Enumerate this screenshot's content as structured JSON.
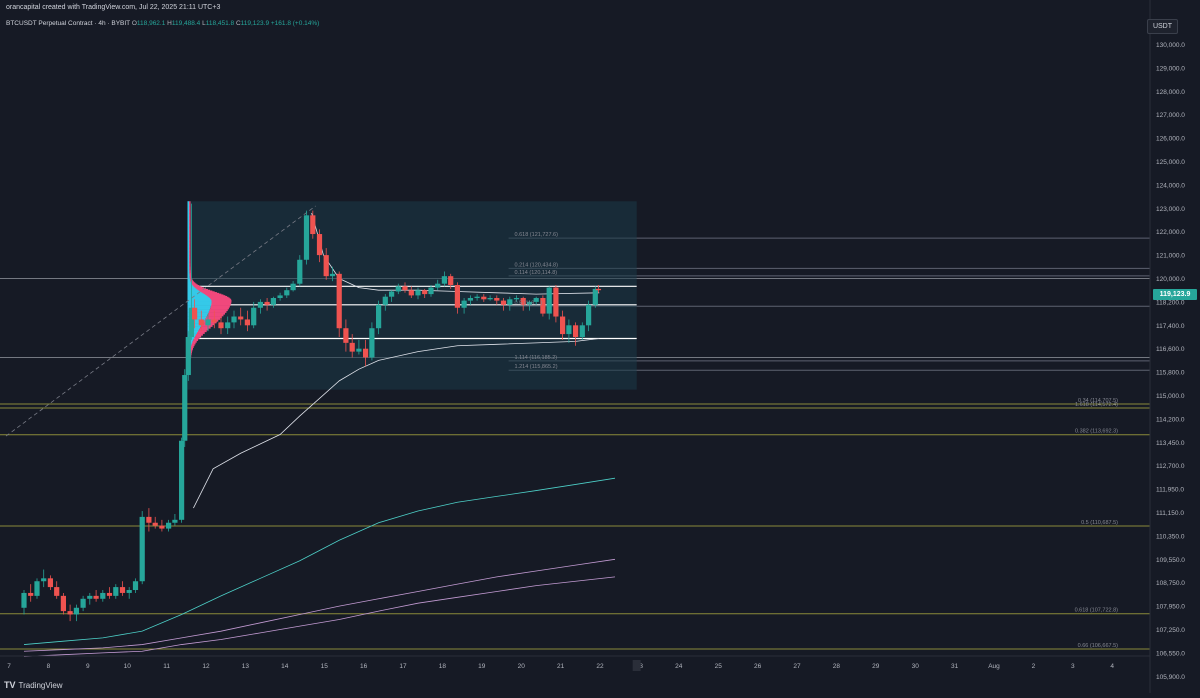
{
  "header": {
    "credit": "orancapital created with TradingView.com, Jul 22, 2025 21:11 UTC+3",
    "symbol": "BTCUSDT Perpetual Contract · 4h · BYBIT",
    "ohlc": [
      {
        "label": "O",
        "value": "118,962.1"
      },
      {
        "label": "H",
        "value": "119,488.4"
      },
      {
        "label": "L",
        "value": "118,451.8"
      },
      {
        "label": "C",
        "value": "119,123.9"
      },
      {
        "label": "",
        "value": "+161.8 (+0.14%)"
      }
    ]
  },
  "price_axis": {
    "currency": "USDT",
    "last_price": "119,123.9"
  },
  "brand": {
    "name": "TradingView",
    "icon": "tradingview-logo-icon"
  },
  "colors": {
    "background": "#161a25",
    "up": "#26a69a",
    "down": "#ef5350",
    "vwap": "#e0e3eb",
    "teal_line": "#4dd0c8",
    "purple_line": "#c39bd3",
    "level_olive": "#8a8a3a",
    "range_box": "#1c3b48",
    "profile_cyan": "#35c9e8",
    "profile_pink": "#f0487c"
  },
  "chart_data": {
    "type": "candlestick",
    "timeframe": "4h",
    "y_ticks": [
      130000,
      129000,
      128000,
      127000,
      126000,
      125000,
      124000,
      123000,
      122000,
      121000,
      120000,
      118200,
      117400,
      116600,
      115800,
      115000,
      114200,
      113450,
      112700,
      111950,
      111150,
      110350,
      109550,
      108750,
      107950,
      107250,
      106550,
      105900,
      105260
    ],
    "y_tick_labels": [
      "130,000.0",
      "129,000.0",
      "128,000.0",
      "127,000.0",
      "126,000.0",
      "125,000.0",
      "124,000.0",
      "123,000.0",
      "122,000.0",
      "121,000.0",
      "120,000.0",
      "118,200.0",
      "117,400.0",
      "116,600.0",
      "115,800.0",
      "115,000.0",
      "114,200.0",
      "113,450.0",
      "112,700.0",
      "111,950.0",
      "111,150.0",
      "110,350.0",
      "109,550.0",
      "108,750.0",
      "107,950.0",
      "107,250.0",
      "106,550.0",
      "105,900.0",
      "105,260.0"
    ],
    "x_ticks": [
      "7",
      "8",
      "9",
      "10",
      "11",
      "12",
      "13",
      "14",
      "15",
      "16",
      "17",
      "18",
      "19",
      "20",
      "21",
      "22",
      "23",
      "24",
      "25",
      "26",
      "27",
      "28",
      "29",
      "30",
      "31",
      "Aug",
      "2",
      "3",
      "4"
    ],
    "candles": [
      [
        0.0,
        107900,
        108500,
        107700,
        108400
      ],
      [
        0.17,
        108400,
        108700,
        108100,
        108300
      ],
      [
        0.33,
        108300,
        108900,
        108200,
        108800
      ],
      [
        0.5,
        108800,
        109200,
        108600,
        108900
      ],
      [
        0.67,
        108900,
        109000,
        108500,
        108600
      ],
      [
        0.83,
        108600,
        108800,
        108200,
        108300
      ],
      [
        1.0,
        108300,
        108400,
        107700,
        107800
      ],
      [
        1.17,
        107800,
        108000,
        107500,
        107700
      ],
      [
        1.33,
        107700,
        108000,
        107500,
        107900
      ],
      [
        1.5,
        107900,
        108300,
        107800,
        108200
      ],
      [
        1.67,
        108200,
        108400,
        108000,
        108300
      ],
      [
        1.83,
        108300,
        108500,
        108100,
        108200
      ],
      [
        2.0,
        108200,
        108500,
        108100,
        108400
      ],
      [
        2.17,
        108400,
        108600,
        108200,
        108300
      ],
      [
        2.33,
        108300,
        108700,
        108200,
        108600
      ],
      [
        2.5,
        108600,
        108800,
        108300,
        108400
      ],
      [
        2.67,
        108400,
        108600,
        108200,
        108500
      ],
      [
        2.83,
        108500,
        108900,
        108400,
        108800
      ],
      [
        3.0,
        108800,
        111200,
        108700,
        111000
      ],
      [
        3.17,
        111000,
        111300,
        110500,
        110800
      ],
      [
        3.33,
        110800,
        111000,
        110600,
        110700
      ],
      [
        3.5,
        110700,
        110900,
        110500,
        110600
      ],
      [
        3.67,
        110600,
        110900,
        110500,
        110800
      ],
      [
        3.83,
        110800,
        111100,
        110700,
        110900
      ],
      [
        4.0,
        110900,
        113600,
        110800,
        113500
      ],
      [
        4.08,
        113500,
        115900,
        113300,
        115700
      ],
      [
        4.17,
        115700,
        117200,
        115500,
        117000
      ],
      [
        4.25,
        117000,
        123200,
        116900,
        118000
      ],
      [
        4.33,
        118000,
        118400,
        117300,
        117600
      ],
      [
        4.5,
        117600,
        117900,
        117200,
        117400
      ],
      [
        4.67,
        117400,
        117800,
        117200,
        117600
      ],
      [
        4.83,
        117600,
        117900,
        117300,
        117500
      ],
      [
        5.0,
        117500,
        117800,
        117100,
        117300
      ],
      [
        5.17,
        117300,
        117700,
        117100,
        117500
      ],
      [
        5.33,
        117500,
        117900,
        117300,
        117700
      ],
      [
        5.5,
        117700,
        118000,
        117400,
        117600
      ],
      [
        5.67,
        117600,
        117900,
        117200,
        117400
      ],
      [
        5.83,
        117400,
        118200,
        117300,
        118000
      ],
      [
        6.0,
        118000,
        118400,
        117800,
        118200
      ],
      [
        6.17,
        118200,
        118500,
        117900,
        118100
      ],
      [
        6.33,
        118100,
        118600,
        118000,
        118500
      ],
      [
        6.5,
        118500,
        118900,
        118300,
        118700
      ],
      [
        6.67,
        118700,
        119300,
        118500,
        119100
      ],
      [
        6.83,
        119100,
        119800,
        119000,
        119600
      ],
      [
        7.0,
        119600,
        121000,
        119400,
        120800
      ],
      [
        7.17,
        120800,
        122900,
        120600,
        122700
      ],
      [
        7.33,
        122700,
        122900,
        121700,
        121900
      ],
      [
        7.5,
        121900,
        122100,
        120700,
        121000
      ],
      [
        7.67,
        121000,
        121300,
        119900,
        120100
      ],
      [
        7.83,
        120100,
        120500,
        119800,
        120200
      ],
      [
        8.0,
        120200,
        120300,
        117000,
        117300
      ],
      [
        8.17,
        117300,
        117600,
        116500,
        116800
      ],
      [
        8.33,
        116800,
        117100,
        116300,
        116500
      ],
      [
        8.5,
        116500,
        116900,
        116400,
        116600
      ],
      [
        8.67,
        116600,
        116900,
        116000,
        116300
      ],
      [
        8.83,
        116300,
        117500,
        116200,
        117300
      ],
      [
        9.0,
        117300,
        118300,
        117100,
        118100
      ],
      [
        9.17,
        118100,
        118800,
        117900,
        118600
      ],
      [
        9.33,
        118600,
        119100,
        118200,
        119000
      ],
      [
        9.5,
        119000,
        119600,
        118800,
        119400
      ],
      [
        9.67,
        119400,
        119700,
        118900,
        119100
      ],
      [
        9.83,
        119100,
        119400,
        118500,
        118700
      ],
      [
        10.0,
        118700,
        119300,
        118400,
        119100
      ],
      [
        10.17,
        119100,
        119200,
        118500,
        118800
      ],
      [
        10.33,
        118800,
        119500,
        118600,
        119300
      ],
      [
        10.5,
        119300,
        119900,
        119100,
        119600
      ],
      [
        10.67,
        119600,
        120300,
        119400,
        120100
      ],
      [
        10.83,
        120100,
        120200,
        119200,
        119500
      ],
      [
        11.0,
        119500,
        119700,
        117800,
        118000
      ],
      [
        11.17,
        118000,
        118500,
        117800,
        118300
      ],
      [
        11.33,
        118300,
        118700,
        118100,
        118500
      ],
      [
        11.5,
        118500,
        118800,
        118300,
        118600
      ],
      [
        11.67,
        118600,
        118800,
        118200,
        118400
      ],
      [
        11.83,
        118400,
        118700,
        118300,
        118500
      ],
      [
        12.0,
        118500,
        118700,
        118100,
        118300
      ],
      [
        12.17,
        118300,
        118500,
        117900,
        118100
      ],
      [
        12.33,
        118100,
        118600,
        117900,
        118400
      ],
      [
        12.5,
        118400,
        118700,
        118200,
        118500
      ],
      [
        12.67,
        118500,
        118600,
        117900,
        118100
      ],
      [
        12.83,
        118100,
        118300,
        117900,
        118200
      ],
      [
        13.0,
        118200,
        118600,
        118100,
        118500
      ],
      [
        13.17,
        118500,
        118700,
        117700,
        117800
      ],
      [
        13.33,
        117800,
        119400,
        117600,
        119300
      ],
      [
        13.5,
        119300,
        119500,
        117500,
        117700
      ],
      [
        13.67,
        117700,
        117900,
        116900,
        117100
      ],
      [
        13.83,
        117100,
        117600,
        116800,
        117400
      ],
      [
        14.0,
        117400,
        117500,
        116700,
        117000
      ],
      [
        14.17,
        117000,
        117500,
        116900,
        117400
      ],
      [
        14.33,
        117400,
        118300,
        117200,
        118100
      ],
      [
        14.5,
        118100,
        119400,
        118000,
        119200
      ],
      [
        14.58,
        119200,
        119500,
        118900,
        119100
      ]
    ],
    "horizontal_levels": [
      {
        "label": "0.618 (121,727.6)",
        "price": 121727.6,
        "color": "#5d6270"
      },
      {
        "label": "0.214 (120,434.8)",
        "price": 120434.8,
        "color": "#5d6270"
      },
      {
        "label": "0.114 (120,114.8)",
        "price": 120114.8,
        "color": "#5d6270"
      },
      {
        "label": "0.5 (118,...)",
        "price": 118050,
        "color": "#5d6270"
      },
      {
        "label": "1.114 (116,185.2)",
        "price": 116185.2,
        "color": "#5d6270"
      },
      {
        "label": "1.214 (115,865.2)",
        "price": 115865.2,
        "color": "#5d6270"
      },
      {
        "label": "1.618 (114,572.4)",
        "price": 114572.4,
        "color": "#8a8a3a"
      },
      {
        "label": "0.34 (114,707.5)",
        "price": 114707.5,
        "color": "#8a8a3a"
      },
      {
        "label": "0.382 (113,692.3)",
        "price": 113692.3,
        "color": "#8a8a3a"
      },
      {
        "label": "0.5 (110,687.5)",
        "price": 110687.5,
        "color": "#8a8a3a"
      },
      {
        "label": "0.618 (107,722.8)",
        "price": 107722.8,
        "color": "#8a8a3a"
      },
      {
        "label": "0.66 (106,667.5)",
        "price": 106667.5,
        "color": "#8a8a3a"
      }
    ],
    "range_lines": [
      119400,
      118100,
      116950
    ],
    "lines": [
      {
        "color": "#e0e3eb",
        "points": [
          [
            4.3,
            111300
          ],
          [
            4.8,
            112600
          ],
          [
            5.5,
            113100
          ],
          [
            6.0,
            113400
          ],
          [
            6.5,
            113700
          ],
          [
            7.0,
            114300
          ],
          [
            7.5,
            114900
          ],
          [
            8.0,
            115500
          ],
          [
            8.5,
            115900
          ],
          [
            9.0,
            116200
          ],
          [
            10,
            116500
          ],
          [
            11,
            116700
          ],
          [
            12,
            116750
          ],
          [
            13,
            116800
          ],
          [
            14,
            116850
          ],
          [
            14.6,
            116950
          ]
        ]
      },
      {
        "color": "#e0e3eb",
        "points": [
          [
            7.3,
            122800
          ],
          [
            7.6,
            121000
          ],
          [
            8.0,
            120000
          ],
          [
            8.5,
            119300
          ],
          [
            9,
            119100
          ],
          [
            10,
            119100
          ],
          [
            11,
            119000
          ],
          [
            12,
            118900
          ],
          [
            13,
            118800
          ],
          [
            14.6,
            118900
          ]
        ]
      },
      {
        "color": "#4dd0c8",
        "points": [
          [
            0,
            106800
          ],
          [
            1,
            106900
          ],
          [
            2,
            107000
          ],
          [
            3,
            107200
          ],
          [
            4,
            107700
          ],
          [
            5,
            108300
          ],
          [
            6,
            108900
          ],
          [
            7,
            109500
          ],
          [
            8,
            110200
          ],
          [
            9,
            110800
          ],
          [
            10,
            111200
          ],
          [
            11,
            111500
          ],
          [
            12,
            111700
          ],
          [
            13,
            111900
          ],
          [
            14,
            112100
          ],
          [
            15,
            112300
          ]
        ]
      },
      {
        "color": "#c39bd3",
        "points": [
          [
            0,
            106600
          ],
          [
            1,
            106650
          ],
          [
            2,
            106700
          ],
          [
            3,
            106800
          ],
          [
            4,
            107000
          ],
          [
            5,
            107200
          ],
          [
            6,
            107450
          ],
          [
            7,
            107700
          ],
          [
            8,
            107950
          ],
          [
            9,
            108200
          ],
          [
            10,
            108450
          ],
          [
            11,
            108700
          ],
          [
            12,
            108950
          ],
          [
            13,
            109150
          ],
          [
            14,
            109350
          ],
          [
            15,
            109550
          ]
        ]
      },
      {
        "color": "#c39bd3",
        "points": [
          [
            0,
            106450
          ],
          [
            1,
            106500
          ],
          [
            2,
            106550
          ],
          [
            3,
            106600
          ],
          [
            4,
            106800
          ],
          [
            5,
            106950
          ],
          [
            6,
            107150
          ],
          [
            7,
            107350
          ],
          [
            8,
            107550
          ],
          [
            9,
            107800
          ],
          [
            10,
            108050
          ],
          [
            11,
            108250
          ],
          [
            12,
            108450
          ],
          [
            13,
            108650
          ],
          [
            14,
            108800
          ],
          [
            15,
            108950
          ]
        ]
      },
      {
        "color": "#c39bd3",
        "points": [
          [
            13.5,
            105100
          ],
          [
            14,
            105200
          ],
          [
            15,
            105350
          ]
        ]
      }
    ],
    "dashed_trend": [
      [
        0,
        113650
      ],
      [
        7.4,
        123100
      ]
    ],
    "volume_profile": {
      "price_low": 116300,
      "price_high": 123300
    }
  }
}
